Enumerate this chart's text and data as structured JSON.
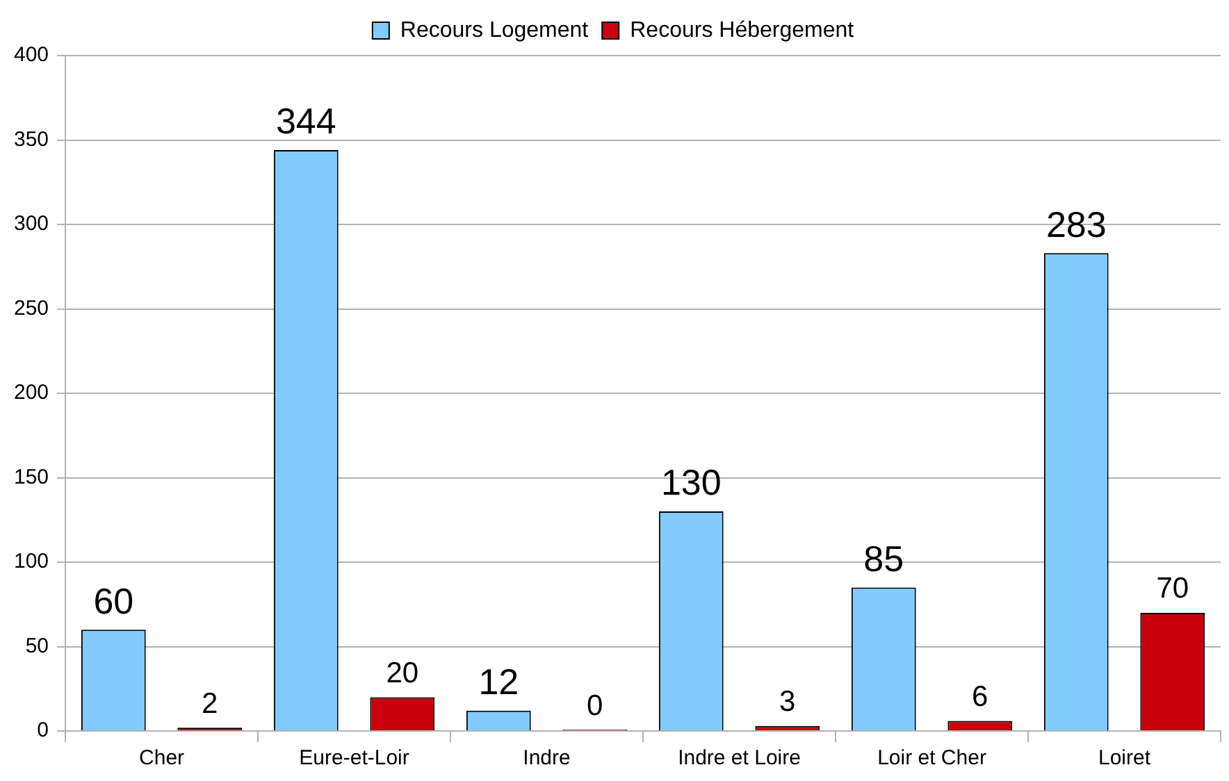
{
  "chart_data": {
    "type": "bar",
    "categories": [
      "Cher",
      "Eure-et-Loir",
      "Indre",
      "Indre et Loire",
      "Loir et Cher",
      "Loiret"
    ],
    "series": [
      {
        "name": "Recours Logement",
        "color": "#83caff",
        "values": [
          60,
          344,
          12,
          130,
          85,
          283
        ]
      },
      {
        "name": "Recours Hébergement",
        "color": "#c9000d",
        "values": [
          2,
          20,
          0,
          3,
          6,
          70
        ]
      }
    ],
    "ylim": [
      0,
      400
    ],
    "yticks": [
      0,
      50,
      100,
      150,
      200,
      250,
      300,
      350,
      400
    ],
    "grid": "y",
    "legend": "top",
    "data_labels": true
  }
}
